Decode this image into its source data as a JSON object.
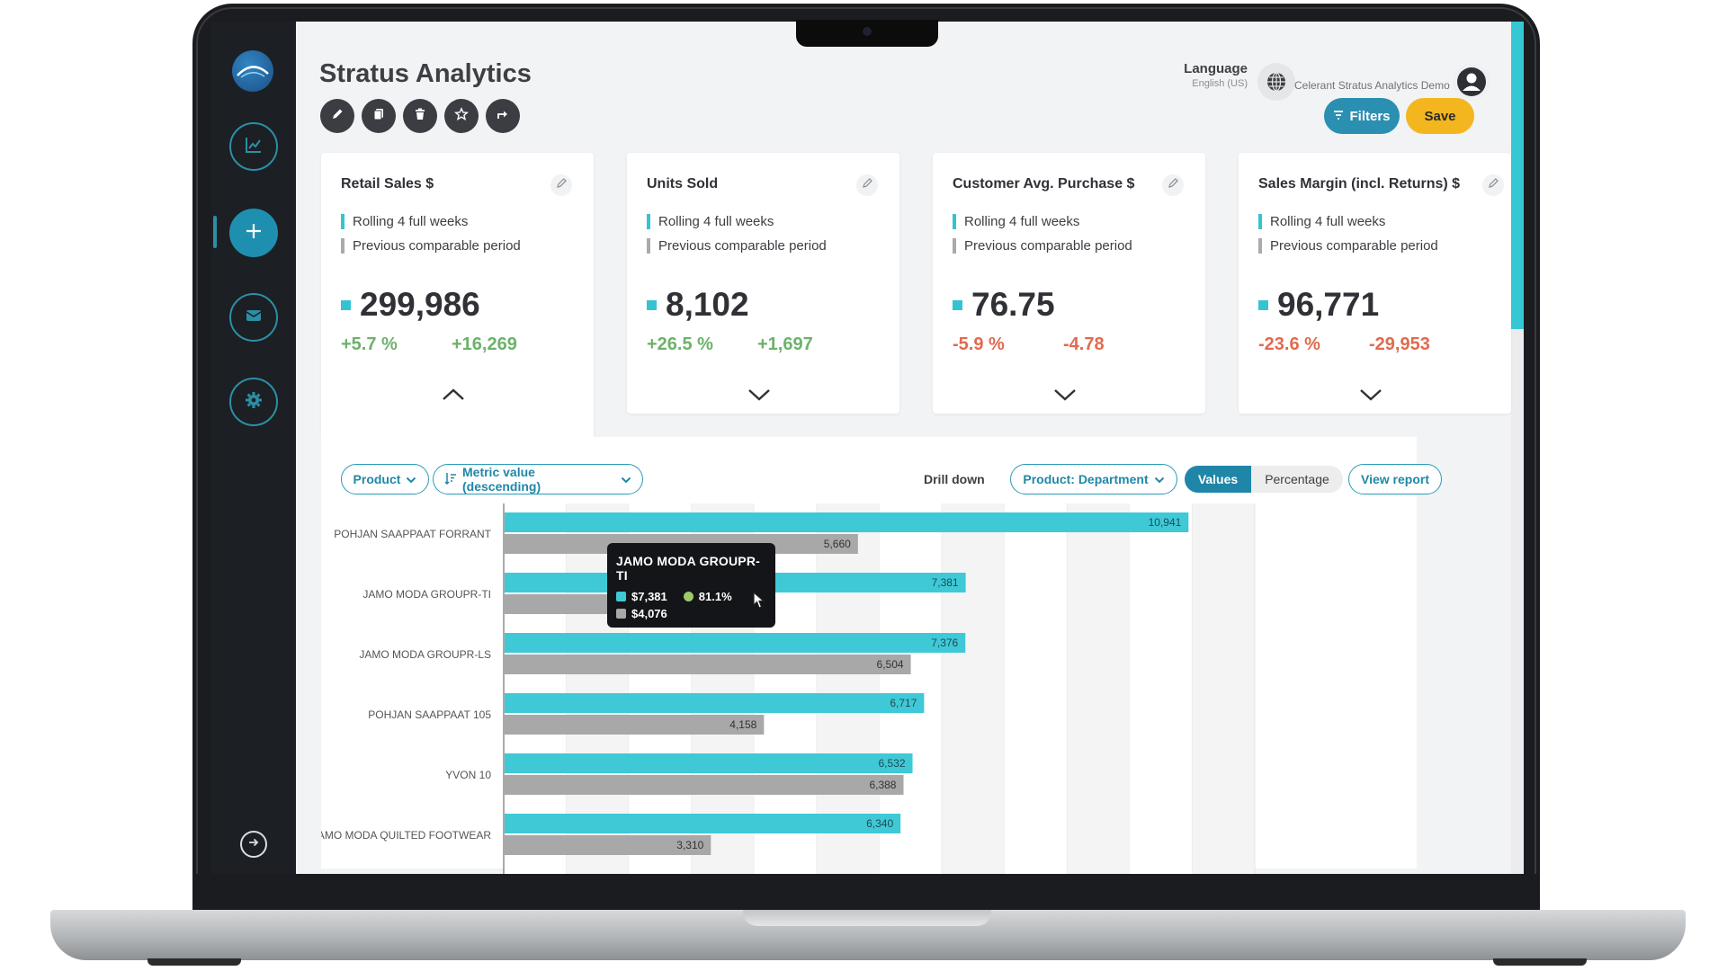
{
  "app": {
    "title": "Stratus Analytics",
    "language_label": "Language",
    "language_value": "English (US)",
    "user_name": "Celerant Stratus Analytics Demo"
  },
  "toolbar": {
    "filters_label": "Filters",
    "save_label": "Save"
  },
  "legend": {
    "current": "Rolling 4 full weeks",
    "previous": "Previous comparable period"
  },
  "kpis": [
    {
      "title": "Retail Sales $",
      "value": "299,986",
      "pct": "+5.7 %",
      "abs": "+16,269",
      "trend": "pos",
      "open": true
    },
    {
      "title": "Units Sold",
      "value": "8,102",
      "pct": "+26.5 %",
      "abs": "+1,697",
      "trend": "pos",
      "open": false
    },
    {
      "title": "Customer Avg. Purchase $",
      "value": "76.75",
      "pct": "-5.9 %",
      "abs": "-4.78",
      "trend": "neg",
      "open": false
    },
    {
      "title": "Sales Margin (incl. Returns) $",
      "value": "96,771",
      "pct": "-23.6 %",
      "abs": "-29,953",
      "trend": "neg",
      "open": false
    }
  ],
  "controls": {
    "group_by": "Product",
    "sort": "Metric value (descending)",
    "drill_label": "Drill down",
    "drill_value": "Product: Department",
    "values_label": "Values",
    "percentage_label": "Percentage",
    "view_report": "View report"
  },
  "tooltip": {
    "title": "JAMO MODA GROUPR-TI",
    "current": "$7,381",
    "pct": "81.1%",
    "previous": "$4,076"
  },
  "colors": {
    "current": "#3fc9d6",
    "previous": "#a8a8a8",
    "accent": "#1f86a8",
    "save": "#f3b61f"
  },
  "chart_data": {
    "type": "bar",
    "orientation": "horizontal",
    "categories": [
      "POHJAN SAAPPAAT FORRANT",
      "JAMO MODA GROUPR-TI",
      "JAMO MODA GROUPR-LS",
      "POHJAN SAAPPAAT 105",
      "YVON 10",
      "JAMO MODA QUILTED FOOTWEAR"
    ],
    "series": [
      {
        "values": [
          10941,
          7381,
          7376,
          6717,
          6532,
          6340
        ]
      },
      {
        "values": [
          5660,
          4076,
          6504,
          4158,
          6388,
          3310
        ]
      }
    ],
    "xlim": [
      0,
      12000
    ],
    "grid": true
  }
}
